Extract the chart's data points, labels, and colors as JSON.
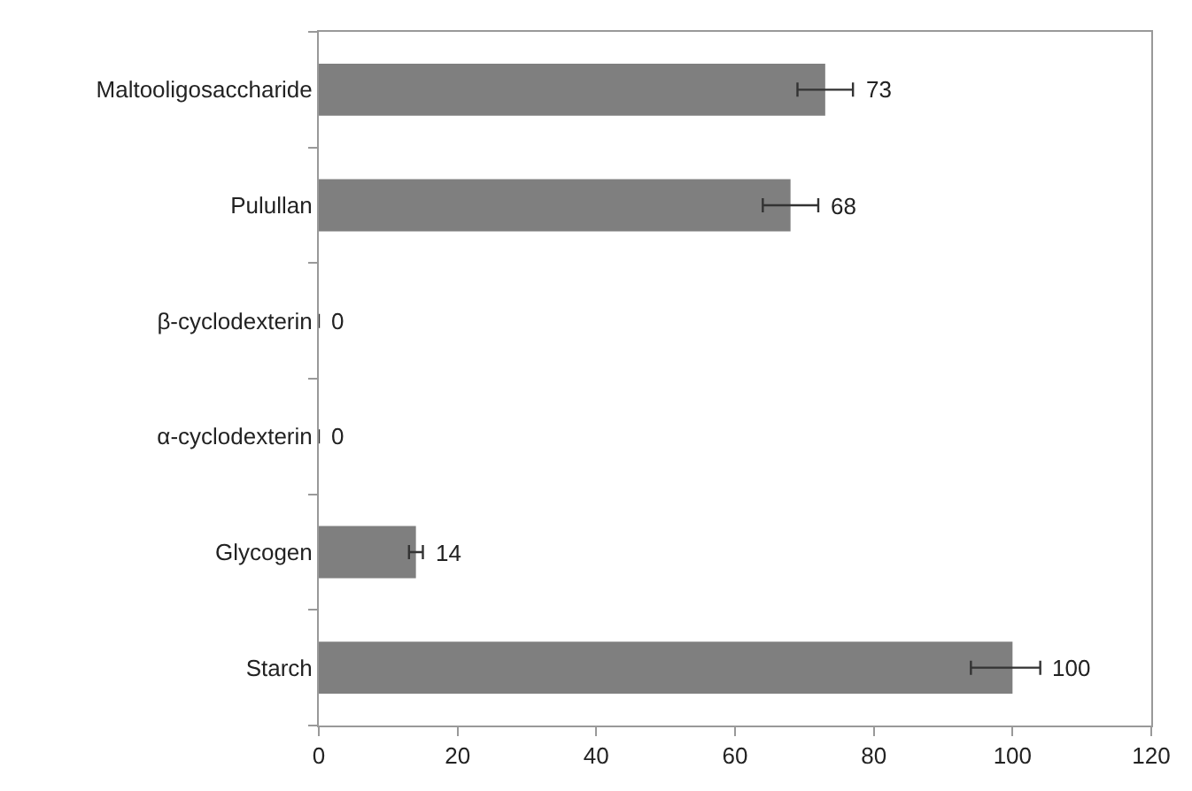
{
  "chart_data": {
    "type": "bar",
    "orientation": "horizontal",
    "categories": [
      "Maltooligosaccharide",
      "Pulullan",
      "β-cyclodexterin",
      "α-cyclodexterin",
      "Glycogen",
      "Starch"
    ],
    "values": [
      73,
      68,
      0,
      0,
      14,
      100
    ],
    "errors": [
      [
        69,
        77
      ],
      [
        64,
        72
      ],
      null,
      null,
      [
        13,
        15
      ],
      [
        94,
        104
      ]
    ],
    "color": "#7f7f7f",
    "data_labels": true,
    "xlim": [
      0,
      120
    ],
    "xticks": [
      0,
      20,
      40,
      60,
      80,
      100,
      120
    ]
  }
}
